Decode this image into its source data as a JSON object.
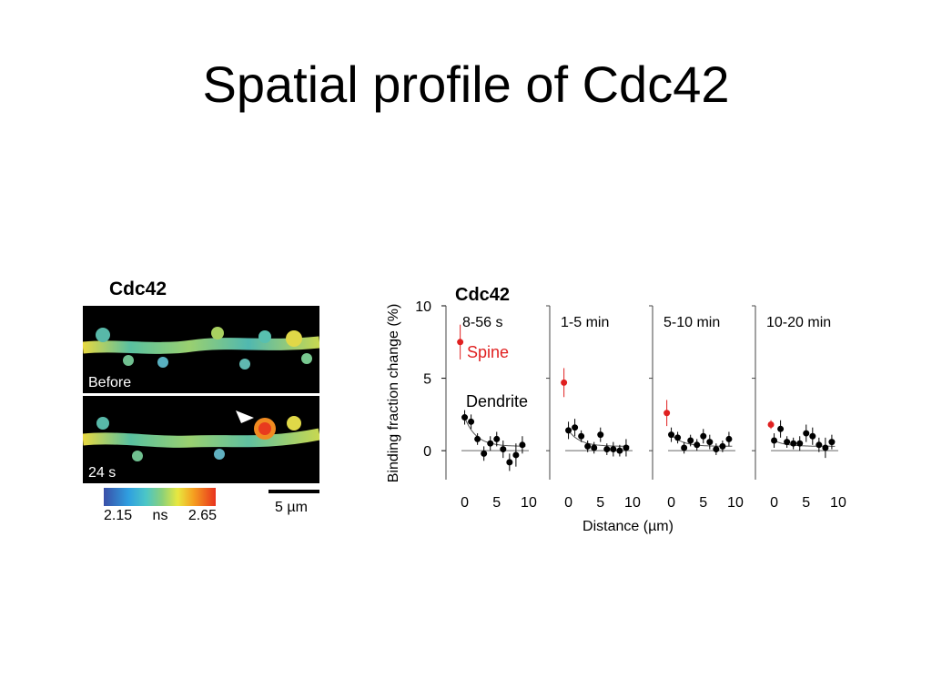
{
  "slide": {
    "title": "Spatial profile of Cdc42"
  },
  "images": {
    "label": "Cdc42",
    "before_label": "Before",
    "after_label": "24 s",
    "colorbar": {
      "min": "2.15",
      "unit": "ns",
      "max": "2.65"
    },
    "scalebar_label": "5 µm"
  },
  "chart_data": {
    "type": "scatter",
    "title": "Cdc42",
    "ylabel": "Binding fraction change (%)",
    "xlabel": "Distance (µm)",
    "ylim": [
      -2,
      10
    ],
    "xlim": [
      -1.5,
      11
    ],
    "yticks": [
      "0",
      "5",
      "10"
    ],
    "xticks": [
      "0",
      "5",
      "10"
    ],
    "annotations": {
      "spine": "Spine",
      "dendrite": "Dendrite"
    },
    "colors": {
      "spine": "#e02020",
      "dendrite": "#000000"
    },
    "panels": [
      {
        "name": "8-56 s",
        "spine": {
          "x": -0.7,
          "y": 7.5,
          "err": 1.2
        },
        "x": [
          0,
          1,
          2,
          3,
          4,
          5,
          6,
          7,
          8,
          9
        ],
        "y": [
          2.3,
          2.0,
          0.8,
          -0.2,
          0.5,
          0.8,
          0.1,
          -0.8,
          -0.3,
          0.4
        ],
        "err": [
          0.5,
          0.5,
          0.4,
          0.5,
          0.5,
          0.5,
          0.6,
          0.6,
          0.8,
          0.6
        ]
      },
      {
        "name": "1-5 min",
        "spine": {
          "x": -0.7,
          "y": 4.7,
          "err": 1.0
        },
        "x": [
          0,
          1,
          2,
          3,
          4,
          5,
          6,
          7,
          8,
          9
        ],
        "y": [
          1.4,
          1.6,
          1.0,
          0.3,
          0.2,
          1.1,
          0.1,
          0.1,
          0.0,
          0.2
        ],
        "err": [
          0.6,
          0.6,
          0.4,
          0.4,
          0.4,
          0.5,
          0.4,
          0.5,
          0.4,
          0.6
        ]
      },
      {
        "name": "5-10 min",
        "spine": {
          "x": -0.7,
          "y": 2.6,
          "err": 0.9
        },
        "x": [
          0,
          1,
          2,
          3,
          4,
          5,
          6,
          7,
          8,
          9
        ],
        "y": [
          1.1,
          0.9,
          0.2,
          0.7,
          0.4,
          1.0,
          0.6,
          0.1,
          0.3,
          0.8
        ],
        "err": [
          0.5,
          0.4,
          0.4,
          0.4,
          0.4,
          0.5,
          0.5,
          0.4,
          0.4,
          0.5
        ]
      },
      {
        "name": "10-20 min",
        "spine": {
          "x": -0.5,
          "y": 1.8,
          "err": 0.3
        },
        "x": [
          0,
          1,
          2,
          3,
          4,
          5,
          6,
          7,
          8,
          9
        ],
        "y": [
          0.7,
          1.5,
          0.6,
          0.5,
          0.5,
          1.2,
          1.0,
          0.4,
          0.2,
          0.6
        ],
        "err": [
          0.5,
          0.6,
          0.4,
          0.4,
          0.5,
          0.6,
          0.6,
          0.5,
          0.7,
          0.5
        ]
      }
    ]
  }
}
